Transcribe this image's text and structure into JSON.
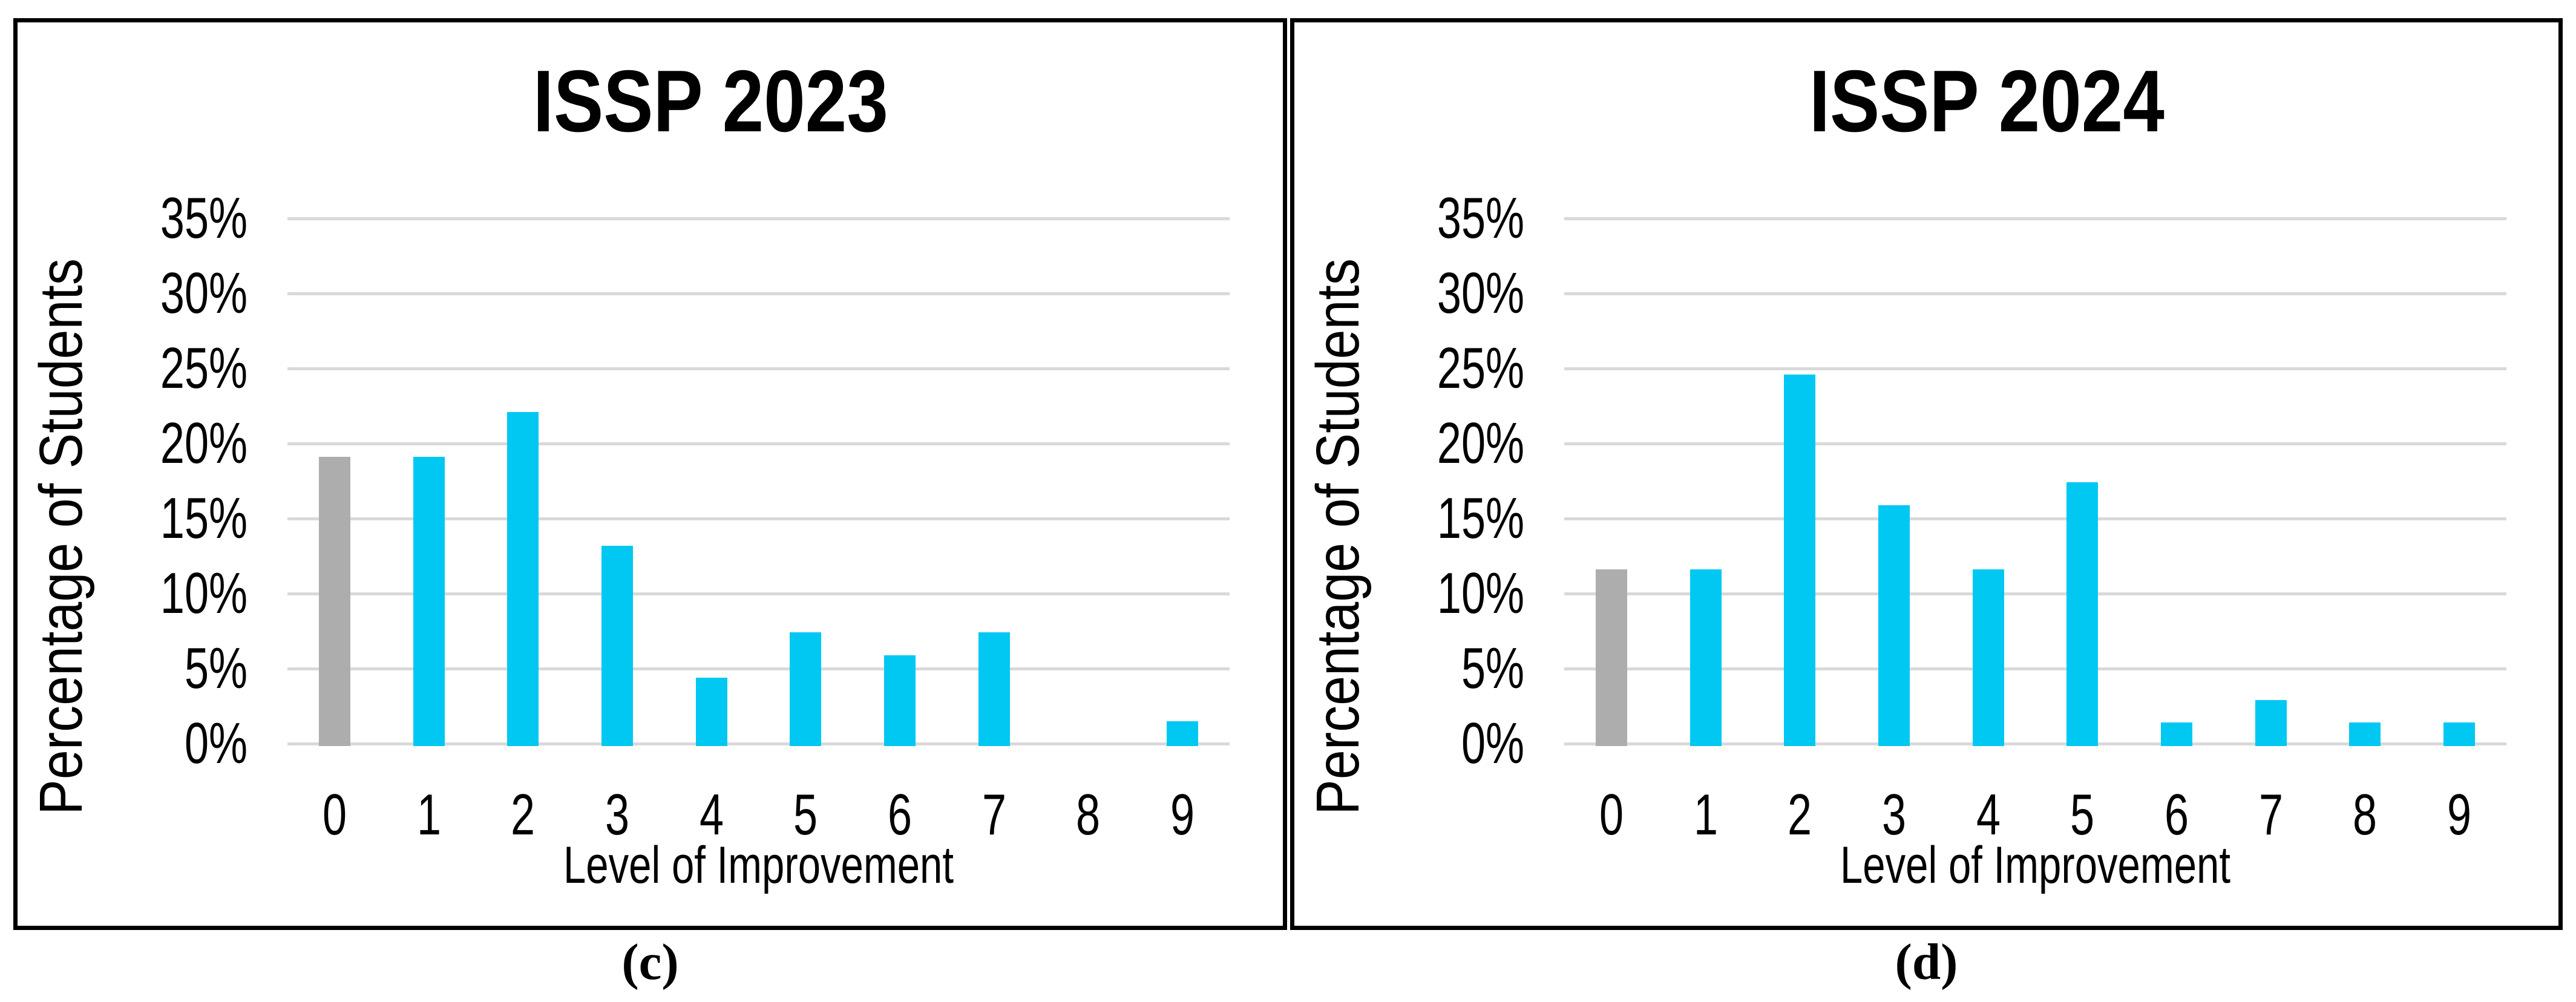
{
  "panels": [
    {
      "title": "ISSP 2023",
      "ylabel": "Percentage of Students",
      "xlabel": "Level of Improvement",
      "caption": "(c)"
    },
    {
      "title": "ISSP 2024",
      "ylabel": "Percentage of Students",
      "xlabel": "Level of Improvement",
      "caption": "(d)"
    }
  ],
  "colors": {
    "bar_accent": "#00C8F2",
    "bar_zero_category": "#ADADAD",
    "gridline": "#D9D9D9",
    "panel_border": "#000000"
  },
  "chart_data": [
    {
      "type": "bar",
      "title": "ISSP 2023",
      "xlabel": "Level of Improvement",
      "ylabel": "Percentage of Students",
      "categories": [
        "0",
        "1",
        "2",
        "3",
        "4",
        "5",
        "6",
        "7",
        "8",
        "9"
      ],
      "values": [
        19.1,
        19.1,
        22.1,
        13.2,
        4.4,
        7.4,
        5.9,
        7.4,
        0,
        1.5
      ],
      "unit": "percent",
      "ylim": [
        0,
        35
      ],
      "ytick_step": 5,
      "ytick_labels": [
        "0%",
        "5%",
        "10%",
        "15%",
        "20%",
        "25%",
        "30%",
        "35%"
      ],
      "grid": true,
      "legend": false,
      "bar_color_default": "#00C8F2",
      "bar_color_category_0": "#ADADAD",
      "caption": "(c)"
    },
    {
      "type": "bar",
      "title": "ISSP 2024",
      "xlabel": "Level of Improvement",
      "ylabel": "Percentage of Students",
      "categories": [
        "0",
        "1",
        "2",
        "3",
        "4",
        "5",
        "6",
        "7",
        "8",
        "9"
      ],
      "values": [
        11.6,
        11.6,
        24.6,
        15.9,
        11.6,
        17.4,
        1.4,
        2.9,
        1.4,
        1.4
      ],
      "unit": "percent",
      "ylim": [
        0,
        35
      ],
      "ytick_step": 5,
      "ytick_labels": [
        "0%",
        "5%",
        "10%",
        "15%",
        "20%",
        "25%",
        "30%",
        "35%"
      ],
      "grid": true,
      "legend": false,
      "bar_color_default": "#00C8F2",
      "bar_color_category_0": "#ADADAD",
      "caption": "(d)"
    }
  ]
}
